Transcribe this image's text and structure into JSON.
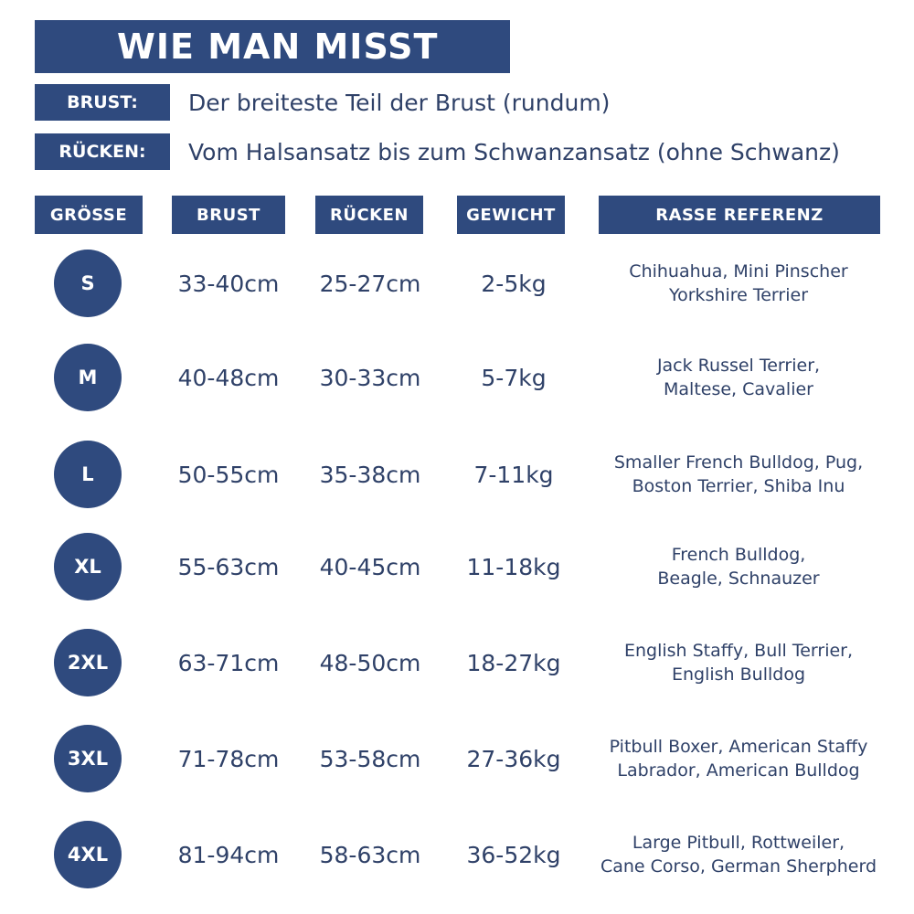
{
  "title": "WIE MAN MISST",
  "definitions": [
    {
      "label": "BRUST:",
      "text": "Der breiteste Teil der Brust (rundum)"
    },
    {
      "label": "RÜCKEN:",
      "text": "Vom Halsansatz bis zum Schwanzansatz (ohne Schwanz)"
    }
  ],
  "columns": {
    "size": "GRÖSSE",
    "chest": "BRUST",
    "back": "RÜCKEN",
    "weight": "GEWICHT",
    "breed": "RASSE REFERENZ"
  },
  "rows": [
    {
      "size": "S",
      "chest": "33-40cm",
      "back": "25-27cm",
      "weight": "2-5kg",
      "breed_1": "Chihuahua, Mini Pinscher",
      "breed_2": "Yorkshire Terrier"
    },
    {
      "size": "M",
      "chest": "40-48cm",
      "back": "30-33cm",
      "weight": "5-7kg",
      "breed_1": "Jack Russel Terrier,",
      "breed_2": "Maltese, Cavalier"
    },
    {
      "size": "L",
      "chest": "50-55cm",
      "back": "35-38cm",
      "weight": "7-11kg",
      "breed_1": "Smaller French Bulldog, Pug,",
      "breed_2": "Boston Terrier, Shiba Inu"
    },
    {
      "size": "XL",
      "chest": "55-63cm",
      "back": "40-45cm",
      "weight": "11-18kg",
      "breed_1": "French Bulldog,",
      "breed_2": "Beagle, Schnauzer"
    },
    {
      "size": "2XL",
      "chest": "63-71cm",
      "back": "48-50cm",
      "weight": "18-27kg",
      "breed_1": "English Staffy, Bull Terrier,",
      "breed_2": "English Bulldog"
    },
    {
      "size": "3XL",
      "chest": "71-78cm",
      "back": "53-58cm",
      "weight": "27-36kg",
      "breed_1": "Pitbull Boxer, American Staffy",
      "breed_2": "Labrador, American Bulldog"
    },
    {
      "size": "4XL",
      "chest": "81-94cm",
      "back": "58-63cm",
      "weight": "36-52kg",
      "breed_1": "Large Pitbull, Rottweiler,",
      "breed_2": "Cane Corso, German Sherpherd"
    }
  ]
}
